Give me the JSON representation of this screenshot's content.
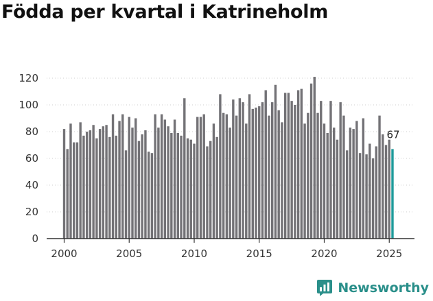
{
  "chart_data": {
    "type": "bar",
    "title": "Födda per kvartal i Katrineholm",
    "xlabel": "",
    "ylabel": "",
    "x_start_year": 2000,
    "periods_per_year": 4,
    "ylim": [
      0,
      125
    ],
    "yticks": [
      0,
      20,
      40,
      60,
      80,
      100,
      120
    ],
    "xticks": [
      "2000",
      "2005",
      "2010",
      "2015",
      "2020",
      "2025"
    ],
    "grid": true,
    "highlight_last": true,
    "last_value_label": "67",
    "colors": {
      "bar": "#737276",
      "highlight": "#1f9b9b"
    },
    "values": [
      82,
      67,
      86,
      72,
      72,
      87,
      77,
      80,
      81,
      85,
      75,
      82,
      84,
      85,
      76,
      93,
      77,
      88,
      93,
      66,
      91,
      83,
      90,
      73,
      78,
      81,
      65,
      64,
      93,
      83,
      93,
      89,
      84,
      79,
      89,
      79,
      77,
      105,
      75,
      74,
      71,
      91,
      91,
      93,
      69,
      73,
      86,
      76,
      108,
      94,
      93,
      83,
      104,
      92,
      105,
      102,
      86,
      108,
      97,
      98,
      99,
      102,
      111,
      92,
      102,
      115,
      96,
      87,
      109,
      109,
      103,
      100,
      111,
      112,
      86,
      94,
      116,
      121,
      94,
      103,
      86,
      79,
      103,
      83,
      74,
      102,
      92,
      66,
      83,
      82,
      88,
      64,
      90,
      63,
      71,
      60,
      69,
      92,
      78,
      70,
      74,
      67
    ]
  },
  "brand": {
    "name": "Newsworthy",
    "icon": "newsworthy-logo-icon"
  }
}
